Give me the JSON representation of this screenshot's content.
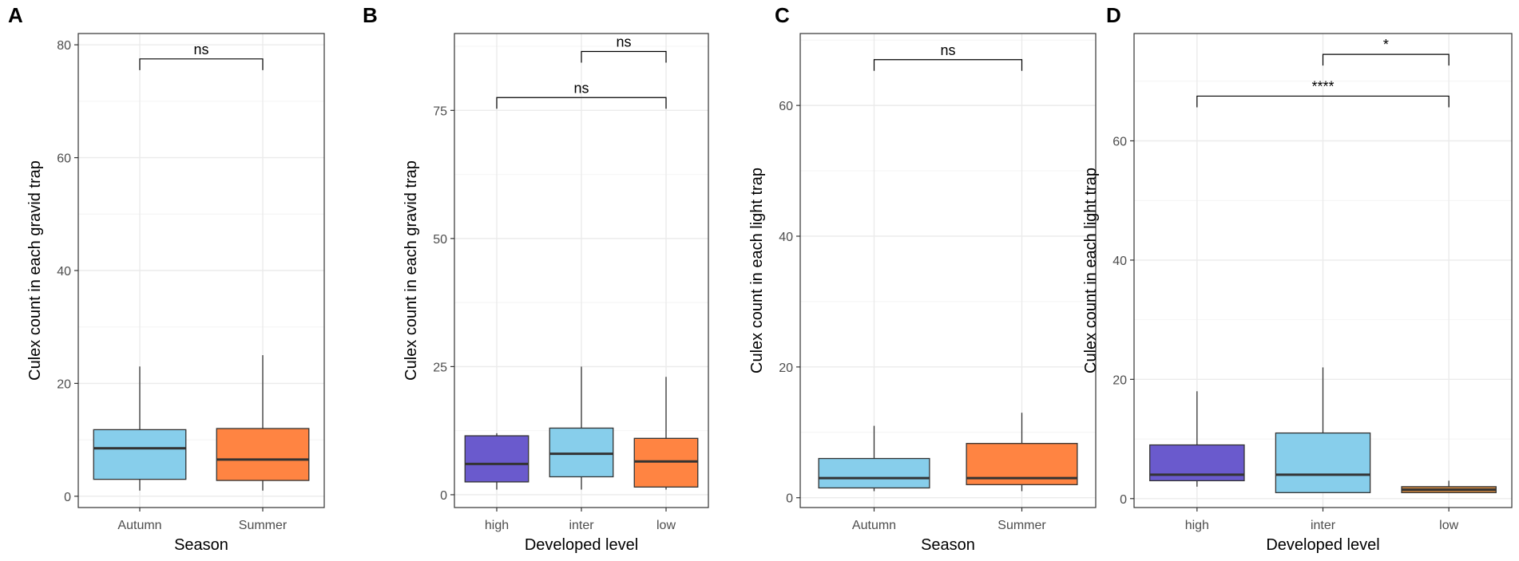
{
  "chart_data": [
    {
      "type": "box",
      "panel": "A",
      "xlabel": "Season",
      "ylabel": "Culex count in each gravid trap",
      "ylim": [
        -2,
        82
      ],
      "yticks": [
        0,
        20,
        40,
        60,
        80
      ],
      "categories": [
        "Autumn",
        "Summer"
      ],
      "boxes": [
        {
          "category": "Autumn",
          "min": 1,
          "q1": 3,
          "median": 8.5,
          "q3": 11.8,
          "max": 23,
          "color": "#87CEEB"
        },
        {
          "category": "Summer",
          "min": 1,
          "q1": 2.8,
          "median": 6.5,
          "q3": 12,
          "max": 25,
          "color": "#FF8442"
        }
      ],
      "comparisons": [
        {
          "from": "Autumn",
          "to": "Summer",
          "y": 77.5,
          "label": "ns"
        }
      ]
    },
    {
      "type": "box",
      "panel": "B",
      "xlabel": "Developed level",
      "ylabel": "Culex count in each gravid trap",
      "ylim": [
        -2.5,
        90
      ],
      "yticks": [
        0,
        25,
        50,
        75
      ],
      "categories": [
        "high",
        "inter",
        "low"
      ],
      "boxes": [
        {
          "category": "high",
          "min": 1,
          "q1": 2.5,
          "median": 6,
          "q3": 11.5,
          "max": 12,
          "color": "#6A5ACD"
        },
        {
          "category": "inter",
          "min": 1,
          "q1": 3.5,
          "median": 8,
          "q3": 13,
          "max": 25,
          "color": "#87CEEB"
        },
        {
          "category": "low",
          "min": 1,
          "q1": 1.5,
          "median": 6.5,
          "q3": 11,
          "max": 23,
          "color": "#FF8442"
        }
      ],
      "comparisons": [
        {
          "from": "inter",
          "to": "low",
          "y": 86.5,
          "label": "ns"
        },
        {
          "from": "high",
          "to": "low",
          "y": 77.5,
          "label": "ns"
        }
      ]
    },
    {
      "type": "box",
      "panel": "C",
      "xlabel": "Season",
      "ylabel": "Culex count in each light trap",
      "ylim": [
        -1.5,
        71
      ],
      "yticks": [
        0,
        20,
        40,
        60
      ],
      "categories": [
        "Autumn",
        "Summer"
      ],
      "boxes": [
        {
          "category": "Autumn",
          "min": 1,
          "q1": 1.5,
          "median": 3,
          "q3": 6,
          "max": 11,
          "color": "#87CEEB"
        },
        {
          "category": "Summer",
          "min": 1,
          "q1": 2,
          "median": 3,
          "q3": 8.3,
          "max": 13,
          "color": "#FF8442"
        }
      ],
      "comparisons": [
        {
          "from": "Autumn",
          "to": "Summer",
          "y": 67,
          "label": "ns"
        }
      ]
    },
    {
      "type": "box",
      "panel": "D",
      "xlabel": "Developed level",
      "ylabel": "Culex count in each light trap",
      "ylim": [
        -1.5,
        78
      ],
      "yticks": [
        0,
        20,
        40,
        60
      ],
      "categories": [
        "high",
        "inter",
        "low"
      ],
      "boxes": [
        {
          "category": "high",
          "min": 2,
          "q1": 3,
          "median": 4,
          "q3": 9,
          "max": 18,
          "color": "#6A5ACD"
        },
        {
          "category": "inter",
          "min": 1,
          "q1": 1,
          "median": 4,
          "q3": 11,
          "max": 22,
          "color": "#87CEEB"
        },
        {
          "category": "low",
          "min": 1,
          "q1": 1,
          "median": 1.5,
          "q3": 2,
          "max": 3,
          "color": "#CD853F"
        }
      ],
      "comparisons": [
        {
          "from": "inter",
          "to": "low",
          "y": 74.5,
          "label": "*"
        },
        {
          "from": "high",
          "to": "low",
          "y": 67.5,
          "label": "****"
        }
      ]
    }
  ]
}
